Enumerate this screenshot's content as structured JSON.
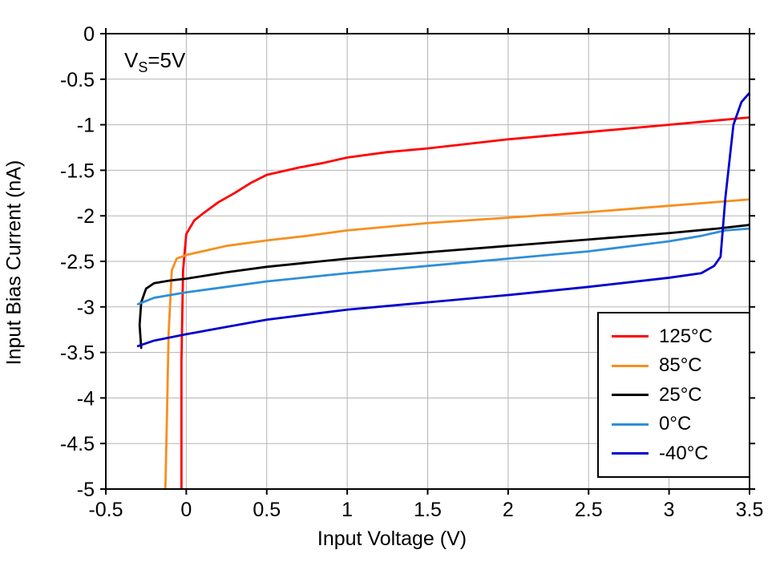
{
  "chart_data": {
    "type": "line",
    "title": "",
    "annotation": {
      "pre": "V",
      "sub": "S",
      "post": "=5V"
    },
    "xlabel": "Input Voltage (V)",
    "ylabel": "Input Bias Current (nA)",
    "xlim": [
      -0.5,
      3.5
    ],
    "ylim": [
      -5,
      0
    ],
    "xticks": [
      -0.5,
      0,
      0.5,
      1,
      1.5,
      2,
      2.5,
      3,
      3.5
    ],
    "xtick_labels": [
      "-0.5",
      "0",
      "0.5",
      "1",
      "1.5",
      "2",
      "2.5",
      "3",
      "3.5"
    ],
    "yticks": [
      0,
      -0.5,
      -1,
      -1.5,
      -2,
      -2.5,
      -3,
      -3.5,
      -4,
      -4.5,
      -5
    ],
    "ytick_labels": [
      "0",
      "-0.5",
      "-1",
      "-1.5",
      "-2",
      "-2.5",
      "-3",
      "-3.5",
      "-4",
      "-4.5",
      "-5"
    ],
    "grid": true,
    "grid_color": "#b3b3b3",
    "frame_color": "#000000",
    "legend_position": "bottom-right",
    "series": [
      {
        "name": "125°C",
        "color": "#ff0000",
        "points": [
          [
            -0.03,
            -5
          ],
          [
            -0.03,
            -3.6
          ],
          [
            -0.02,
            -2.6
          ],
          [
            0,
            -2.2
          ],
          [
            0.05,
            -2.05
          ],
          [
            0.1,
            -1.98
          ],
          [
            0.2,
            -1.85
          ],
          [
            0.3,
            -1.75
          ],
          [
            0.4,
            -1.64
          ],
          [
            0.5,
            -1.55
          ],
          [
            0.7,
            -1.47
          ],
          [
            0.85,
            -1.42
          ],
          [
            1.0,
            -1.36
          ],
          [
            1.25,
            -1.3
          ],
          [
            1.5,
            -1.26
          ],
          [
            2.0,
            -1.16
          ],
          [
            2.5,
            -1.08
          ],
          [
            3.0,
            -1.0
          ],
          [
            3.5,
            -0.92
          ]
        ]
      },
      {
        "name": "85°C",
        "color": "#f78f1e",
        "points": [
          [
            -0.13,
            -5
          ],
          [
            -0.12,
            -4.2
          ],
          [
            -0.11,
            -3.3
          ],
          [
            -0.09,
            -2.6
          ],
          [
            -0.06,
            -2.47
          ],
          [
            0,
            -2.43
          ],
          [
            0.25,
            -2.33
          ],
          [
            0.5,
            -2.27
          ],
          [
            0.75,
            -2.22
          ],
          [
            1.0,
            -2.16
          ],
          [
            1.5,
            -2.08
          ],
          [
            2.0,
            -2.02
          ],
          [
            2.5,
            -1.96
          ],
          [
            3.0,
            -1.89
          ],
          [
            3.5,
            -1.82
          ]
        ]
      },
      {
        "name": "25°C",
        "color": "#000000",
        "points": [
          [
            -0.28,
            -3.45
          ],
          [
            -0.29,
            -3.2
          ],
          [
            -0.28,
            -2.95
          ],
          [
            -0.25,
            -2.8
          ],
          [
            -0.2,
            -2.74
          ],
          [
            -0.1,
            -2.71
          ],
          [
            0,
            -2.69
          ],
          [
            0.25,
            -2.62
          ],
          [
            0.5,
            -2.56
          ],
          [
            1.0,
            -2.47
          ],
          [
            1.5,
            -2.4
          ],
          [
            2.0,
            -2.33
          ],
          [
            2.5,
            -2.26
          ],
          [
            3.0,
            -2.19
          ],
          [
            3.3,
            -2.14
          ],
          [
            3.5,
            -2.1
          ]
        ]
      },
      {
        "name": "0°C",
        "color": "#2e8fd8",
        "points": [
          [
            -0.3,
            -2.97
          ],
          [
            -0.2,
            -2.9
          ],
          [
            -0.1,
            -2.87
          ],
          [
            0,
            -2.84
          ],
          [
            0.25,
            -2.78
          ],
          [
            0.5,
            -2.72
          ],
          [
            1.0,
            -2.63
          ],
          [
            1.5,
            -2.55
          ],
          [
            2.0,
            -2.47
          ],
          [
            2.5,
            -2.39
          ],
          [
            3.0,
            -2.28
          ],
          [
            3.2,
            -2.22
          ],
          [
            3.35,
            -2.16
          ],
          [
            3.5,
            -2.14
          ]
        ]
      },
      {
        "name": "-40°C",
        "color": "#0000cd",
        "points": [
          [
            -0.3,
            -3.43
          ],
          [
            -0.2,
            -3.37
          ],
          [
            0,
            -3.3
          ],
          [
            0.25,
            -3.22
          ],
          [
            0.5,
            -3.14
          ],
          [
            1.0,
            -3.03
          ],
          [
            1.5,
            -2.95
          ],
          [
            2.0,
            -2.87
          ],
          [
            2.5,
            -2.78
          ],
          [
            3.0,
            -2.68
          ],
          [
            3.2,
            -2.63
          ],
          [
            3.28,
            -2.55
          ],
          [
            3.32,
            -2.45
          ],
          [
            3.35,
            -1.8
          ],
          [
            3.4,
            -1.0
          ],
          [
            3.45,
            -0.75
          ],
          [
            3.5,
            -0.65
          ]
        ]
      }
    ]
  }
}
